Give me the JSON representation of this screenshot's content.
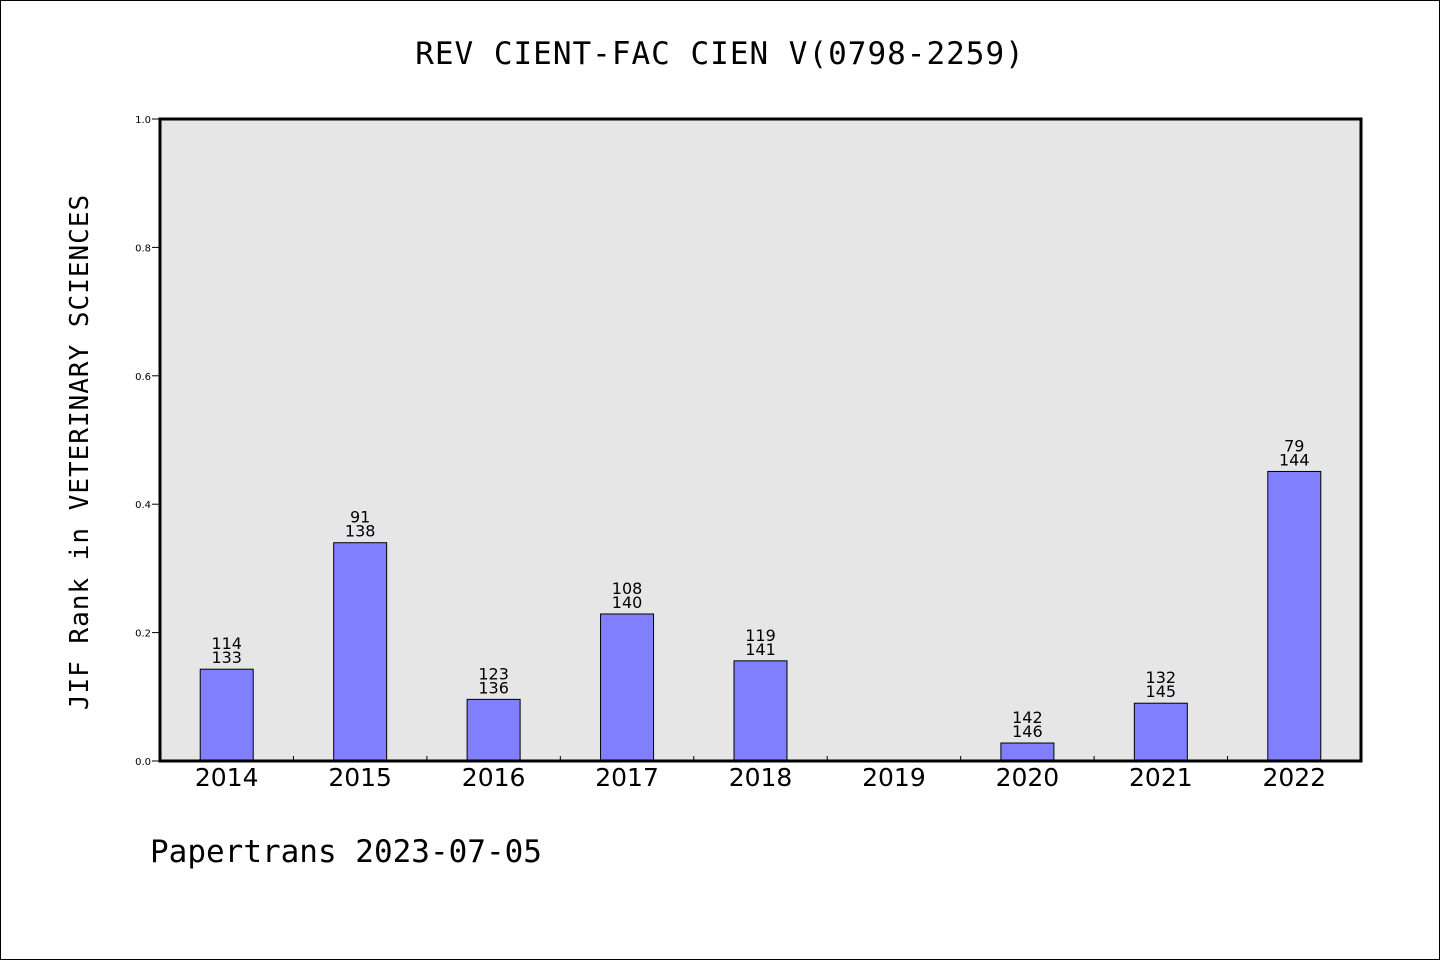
{
  "title": "REV CIENT-FAC CIEN V(0798-2259)",
  "footer": "Papertrans 2023-07-05",
  "colors": {
    "plot_bg": "#e6e6e6",
    "bar": "#8080ff",
    "axis": "#000000"
  },
  "chart_data": {
    "type": "bar",
    "title": "REV CIENT-FAC CIEN V(0798-2259)",
    "xlabel": "",
    "ylabel": "JIF Rank in VETERINARY SCIENCES",
    "ylim": [
      0,
      1.0
    ],
    "yticks": [
      "0.0",
      "0.2",
      "0.4",
      "0.6",
      "0.8",
      "1.0"
    ],
    "grid": false,
    "categories": [
      "2014",
      "2015",
      "2016",
      "2017",
      "2018",
      "2019",
      "2020",
      "2021",
      "2022"
    ],
    "values": [
      0.143,
      0.34,
      0.096,
      0.229,
      0.156,
      null,
      0.028,
      0.09,
      0.451
    ],
    "rank": [
      "114",
      "91",
      "123",
      "108",
      "119",
      "",
      "142",
      "132",
      "79"
    ],
    "total": [
      "133",
      "138",
      "136",
      "140",
      "141",
      "",
      "146",
      "145",
      "144"
    ]
  }
}
